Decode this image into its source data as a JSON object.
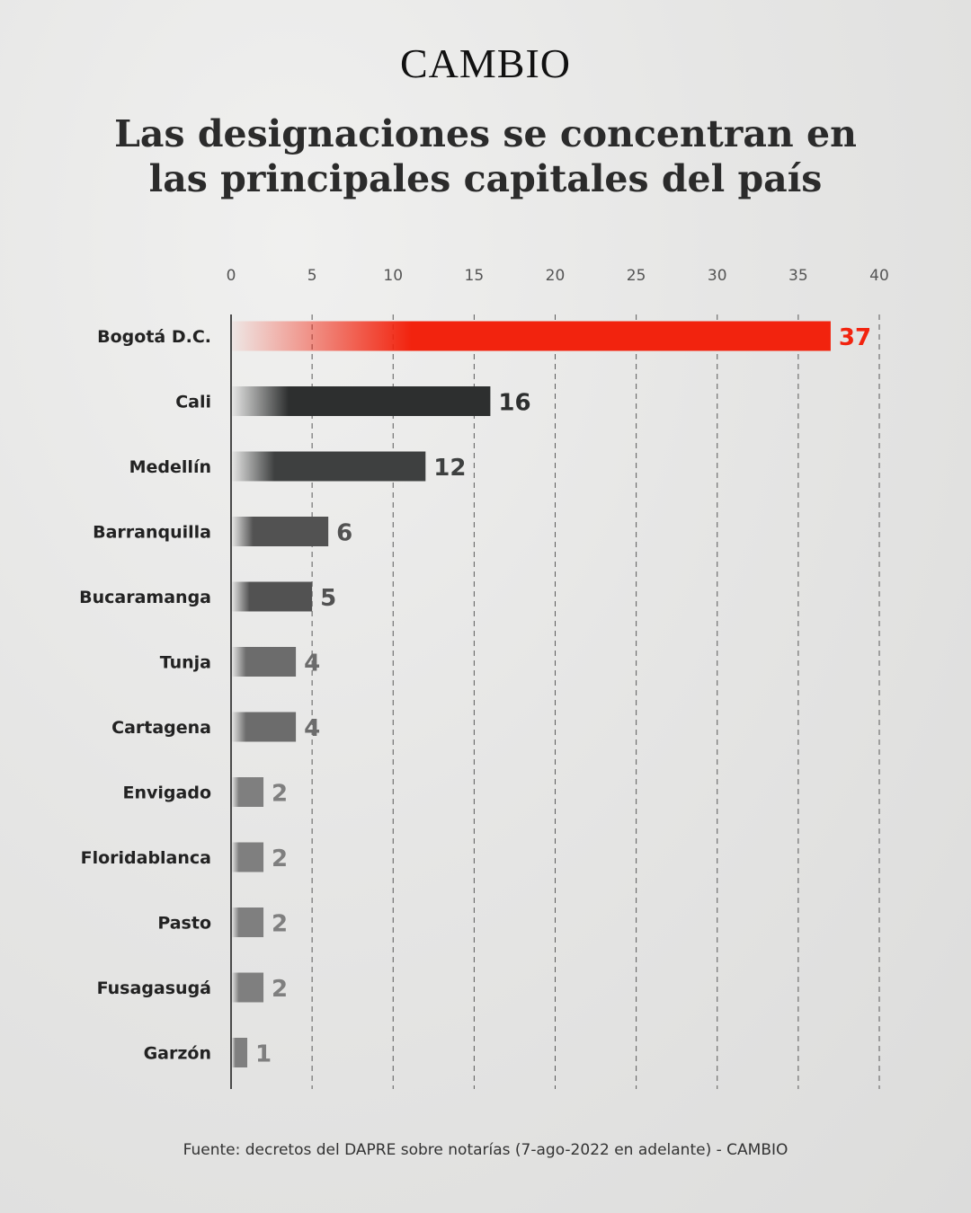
{
  "brand": "CAMBIO",
  "title_lines": [
    "Las designaciones se concentran en",
    "las principales capitales del país"
  ],
  "source": "Fuente: decretos del DAPRE sobre notarías (7-ago-2022 en adelante) - CAMBIO",
  "colors": {
    "highlight": "#f2230e",
    "dark": "#2d2f2f",
    "mid": "#3e4040",
    "gray": "#525252",
    "light": "#6c6c6c",
    "lighter": "#7f7f7f"
  },
  "chart_data": {
    "type": "bar",
    "orientation": "horizontal",
    "title": "Las designaciones se concentran en las principales capitales del país",
    "xlim": [
      0,
      40
    ],
    "xticks": [
      0,
      5,
      10,
      15,
      20,
      25,
      30,
      35,
      40
    ],
    "xticks_position": "top",
    "grid": true,
    "categories": [
      "Bogotá D.C.",
      "Cali",
      "Medellín",
      "Barranquilla",
      "Bucaramanga",
      "Tunja",
      "Cartagena",
      "Envigado",
      "Floridablanca",
      "Pasto",
      "Fusagasugá",
      "Garzón"
    ],
    "values": [
      37,
      16,
      12,
      6,
      5,
      4,
      4,
      2,
      2,
      2,
      2,
      1
    ],
    "bar_colors": [
      "#f2230e",
      "#2d2f2f",
      "#3e4040",
      "#525252",
      "#525252",
      "#6c6c6c",
      "#6c6c6c",
      "#7f7f7f",
      "#7f7f7f",
      "#7f7f7f",
      "#7f7f7f",
      "#7f7f7f"
    ]
  }
}
